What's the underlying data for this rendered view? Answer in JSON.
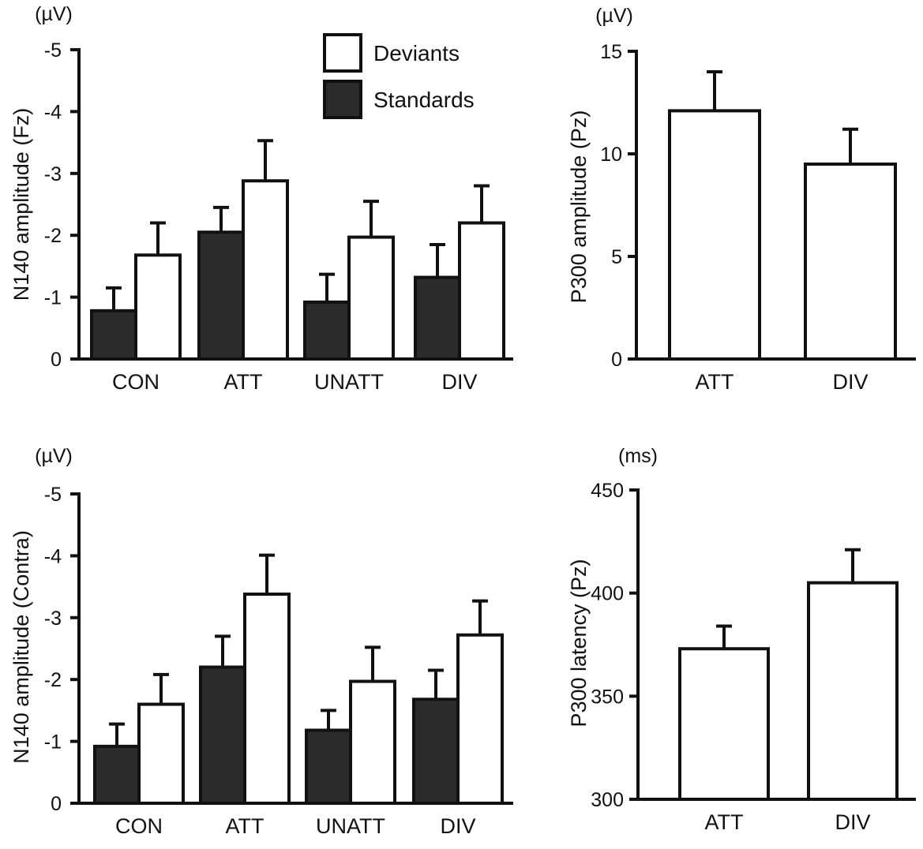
{
  "figure": {
    "colors": {
      "standards": "#2b2b2b",
      "deviants": "#ffffff",
      "stroke": "#111111"
    }
  },
  "legend": {
    "deviants_label": "Deviants",
    "standards_label": "Standards"
  },
  "chart_data": [
    {
      "id": "n140-fz",
      "type": "bar",
      "unit": "(µV)",
      "ylabel": "N140 amplitude (Fz)",
      "yaxis_inverted": true,
      "ylim": [
        0,
        -5
      ],
      "yticks": [
        0,
        -1,
        -2,
        -3,
        -4,
        -5
      ],
      "categories": [
        "CON",
        "ATT",
        "UNATT",
        "DIV"
      ],
      "series": [
        {
          "name": "Standards",
          "values": [
            -0.78,
            -2.05,
            -0.92,
            -1.32
          ],
          "errors": [
            0.37,
            0.4,
            0.45,
            0.53
          ]
        },
        {
          "name": "Deviants",
          "values": [
            -1.68,
            -2.88,
            -1.97,
            -2.2
          ],
          "errors": [
            0.52,
            0.65,
            0.58,
            0.6
          ]
        }
      ]
    },
    {
      "id": "p300-amplitude",
      "type": "bar",
      "unit": "(µV)",
      "ylabel": "P300 amplitude (Pz)",
      "ylim": [
        0,
        15
      ],
      "yticks": [
        0,
        5,
        10,
        15
      ],
      "categories": [
        "ATT",
        "DIV"
      ],
      "series": [
        {
          "name": "Deviants",
          "values": [
            12.1,
            9.5
          ],
          "errors": [
            1.9,
            1.7
          ]
        }
      ]
    },
    {
      "id": "n140-contra",
      "type": "bar",
      "unit": "(µV)",
      "ylabel": "N140 amplitude (Contra)",
      "yaxis_inverted": true,
      "ylim": [
        0,
        -5
      ],
      "yticks": [
        0,
        -1,
        -2,
        -3,
        -4,
        -5
      ],
      "categories": [
        "CON",
        "ATT",
        "UNATT",
        "DIV"
      ],
      "series": [
        {
          "name": "Standards",
          "values": [
            -0.92,
            -2.2,
            -1.18,
            -1.68
          ],
          "errors": [
            0.36,
            0.5,
            0.32,
            0.47
          ]
        },
        {
          "name": "Deviants",
          "values": [
            -1.6,
            -3.38,
            -1.97,
            -2.72
          ],
          "errors": [
            0.48,
            0.63,
            0.55,
            0.55
          ]
        }
      ]
    },
    {
      "id": "p300-latency",
      "type": "bar",
      "unit": "(ms)",
      "ylabel": "P300 latency (Pz)",
      "ylim": [
        300,
        450
      ],
      "yticks": [
        300,
        350,
        400,
        450
      ],
      "categories": [
        "ATT",
        "DIV"
      ],
      "series": [
        {
          "name": "Deviants",
          "values": [
            373,
            405
          ],
          "errors": [
            11,
            16
          ]
        }
      ]
    }
  ]
}
